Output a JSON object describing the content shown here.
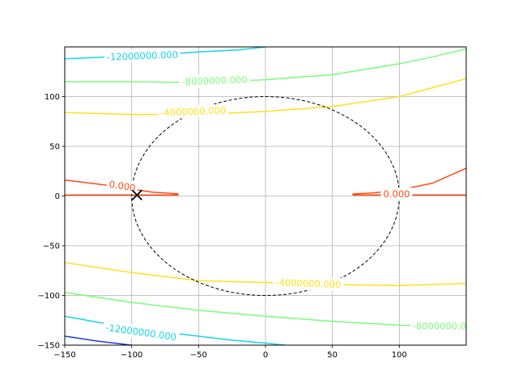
{
  "chart_data": {
    "type": "contour",
    "title": "",
    "xlabel": "",
    "ylabel": "",
    "xlim": [
      -150,
      150
    ],
    "ylim": [
      -150,
      150
    ],
    "grid": true,
    "x_ticks": [
      -150,
      -100,
      -50,
      0,
      50,
      100
    ],
    "y_ticks": [
      -150,
      -100,
      -50,
      0,
      50,
      100
    ],
    "x_tick_labels": [
      "−150",
      "−100",
      "−50",
      "0",
      "50",
      "100"
    ],
    "y_tick_labels": [
      "−150",
      "−100",
      "−50",
      "0",
      "50",
      "100"
    ],
    "contours": [
      {
        "level": -16000000,
        "color": "#1f3bd6",
        "paths": [
          [
            [
              -150,
              -141
            ],
            [
              -125,
              -146
            ],
            [
              -100,
              -150
            ]
          ]
        ]
      },
      {
        "level": -12000000,
        "color": "#12d4ee",
        "paths": [
          [
            [
              -150,
              138
            ],
            [
              -115,
              140
            ],
            [
              -80,
              142
            ],
            [
              -50,
              145
            ],
            [
              -20,
              147
            ],
            [
              0,
              150
            ]
          ],
          [
            [
              -150,
              -121
            ],
            [
              -125,
              -127
            ],
            [
              -100,
              -132
            ],
            [
              -75,
              -137
            ],
            [
              -50,
              -141
            ],
            [
              -25,
              -145
            ],
            [
              0,
              -148
            ],
            [
              15,
              -150
            ]
          ]
        ]
      },
      {
        "level": -8000000,
        "color": "#7cfc7c",
        "paths": [
          [
            [
              -150,
              115
            ],
            [
              -100,
              115
            ],
            [
              -50,
              114
            ],
            [
              0,
              117
            ],
            [
              50,
              122
            ],
            [
              100,
              133
            ],
            [
              125,
              140
            ],
            [
              150,
              148
            ]
          ],
          [
            [
              -150,
              -97
            ],
            [
              -100,
              -107
            ],
            [
              -50,
              -115
            ],
            [
              0,
              -121
            ],
            [
              50,
              -126
            ],
            [
              100,
              -130
            ],
            [
              150,
              -131
            ]
          ]
        ]
      },
      {
        "level": -4000000,
        "color": "#ffe11a",
        "paths": [
          [
            [
              -150,
              84
            ],
            [
              -100,
              82
            ],
            [
              -50,
              82
            ],
            [
              0,
              85
            ],
            [
              50,
              90
            ],
            [
              100,
              100
            ],
            [
              150,
              118
            ]
          ],
          [
            [
              -150,
              -67
            ],
            [
              -100,
              -77
            ],
            [
              -50,
              -85
            ],
            [
              0,
              -87
            ],
            [
              50,
              -89
            ],
            [
              100,
              -90
            ],
            [
              150,
              -88
            ]
          ]
        ]
      },
      {
        "level": 0,
        "color": "#ff4a12",
        "paths": [
          [
            [
              -150,
              16
            ],
            [
              -125,
              12
            ],
            [
              -100,
              7
            ],
            [
              -85,
              4
            ],
            [
              -75,
              3
            ],
            [
              -65,
              2
            ]
          ],
          [
            [
              -150,
              1
            ],
            [
              -120,
              1
            ],
            [
              -90,
              1
            ],
            [
              -65,
              1
            ]
          ],
          [
            [
              65,
              2
            ],
            [
              80,
              3
            ],
            [
              100,
              6
            ],
            [
              125,
              13
            ],
            [
              150,
              28
            ]
          ],
          [
            [
              65,
              1
            ],
            [
              100,
              1
            ],
            [
              150,
              1
            ]
          ]
        ]
      }
    ],
    "contour_labels": [
      {
        "text": "-12000000.000",
        "x": -92,
        "y": 141,
        "angle": -2,
        "color": "#12d4ee"
      },
      {
        "text": "-8000000.000",
        "x": -38,
        "y": 116,
        "angle": -2,
        "color": "#7cfc7c"
      },
      {
        "text": "-4000000.000",
        "x": -54,
        "y": 85,
        "angle": -2,
        "color": "#ffe11a"
      },
      {
        "text": "0.000",
        "x": -107,
        "y": 10,
        "angle": 9,
        "color": "#ff4a12"
      },
      {
        "text": "0.000",
        "x": 98,
        "y": 2,
        "angle": 0,
        "color": "#ff4a12"
      },
      {
        "text": "-4000000.000",
        "x": 32,
        "y": -88,
        "angle": 2,
        "color": "#ffe11a"
      },
      {
        "text": "-12000000.000",
        "x": -93,
        "y": -137,
        "angle": 8,
        "color": "#12d4ee"
      },
      {
        "text": "-8000000.0",
        "x": 130,
        "y": -131,
        "angle": 0,
        "color": "#7cfc7c"
      }
    ],
    "reference_circle": {
      "cx": 0,
      "cy": 0,
      "r": 100,
      "style": "dashed",
      "color": "#000000"
    },
    "marker": {
      "x": -96,
      "y": 1,
      "symbol": "x",
      "color": "#000000"
    }
  }
}
